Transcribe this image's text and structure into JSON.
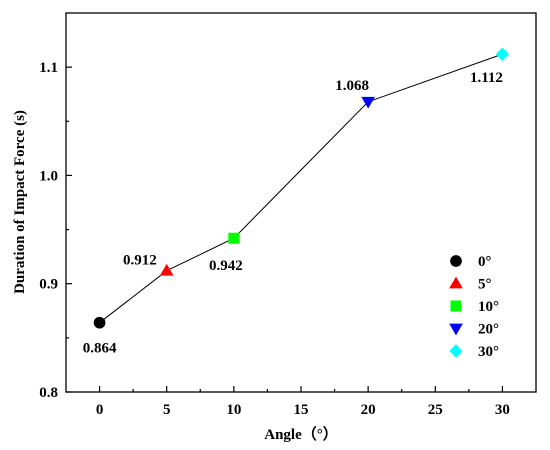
{
  "chart_data": {
    "type": "scatter",
    "xlabel": "Angle（°）",
    "ylabel": "Duration of Impact Force (s)",
    "xlim": [
      -2.5,
      32.5
    ],
    "ylim": [
      0.8,
      1.15
    ],
    "xticks": [
      0,
      5,
      10,
      15,
      20,
      25,
      30
    ],
    "yticks": [
      0.8,
      0.9,
      1.0,
      1.1
    ],
    "ytick_labels": [
      "0.8",
      "0.9",
      "1.0",
      "1.1"
    ],
    "grid": false,
    "legend_position": "lower-right",
    "connecting_line": true,
    "points": [
      {
        "x": 0,
        "y": 0.864,
        "label": "0.864",
        "legend": "0°",
        "marker": "circle",
        "color": "#000000"
      },
      {
        "x": 5,
        "y": 0.912,
        "label": "0.912",
        "legend": "5°",
        "marker": "triangle-up",
        "color": "#ff0000"
      },
      {
        "x": 10,
        "y": 0.942,
        "label": "0.942",
        "legend": "10°",
        "marker": "square",
        "color": "#00ff00"
      },
      {
        "x": 20,
        "y": 1.068,
        "label": "1.068",
        "legend": "20°",
        "marker": "triangle-down",
        "color": "#0000ff"
      },
      {
        "x": 30,
        "y": 1.112,
        "label": "1.112",
        "legend": "30°",
        "marker": "diamond",
        "color": "#00ffff"
      }
    ]
  }
}
